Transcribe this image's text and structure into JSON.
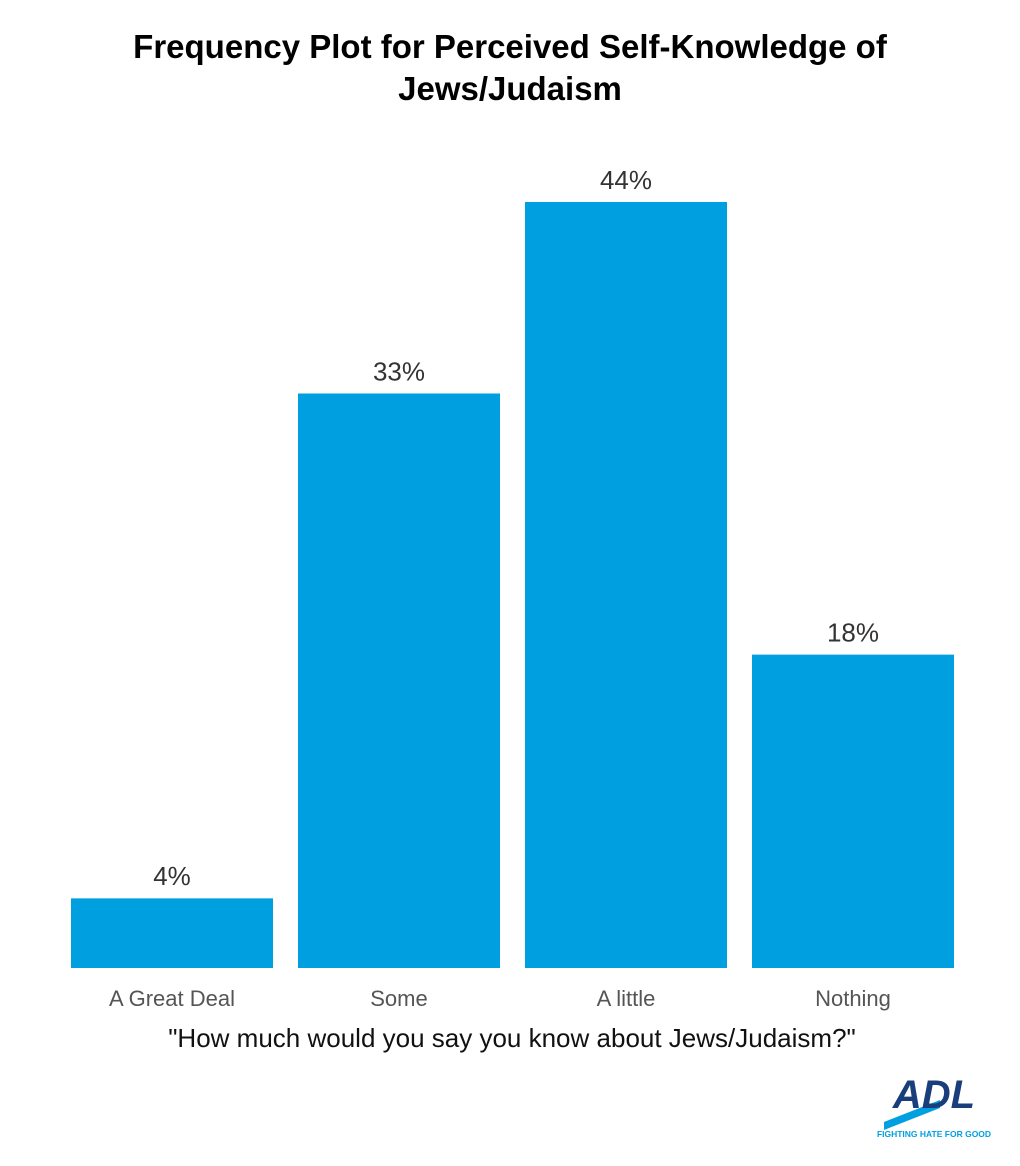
{
  "chart_data": {
    "type": "bar",
    "title": "Frequency Plot for Perceived Self-Knowledge of Jews/Judaism",
    "categories": [
      "A Great Deal",
      "Some",
      "A little",
      "Nothing"
    ],
    "values": [
      4,
      33,
      44,
      18
    ],
    "value_labels": [
      "4%",
      "33%",
      "44%",
      "18%"
    ],
    "color": "#009fdf",
    "x_label": "\"How much would you say you know about Jews/Judaism?\"",
    "logo": {
      "text": "ADL",
      "tagline": "FIGHTING HATE FOR GOOD"
    }
  }
}
